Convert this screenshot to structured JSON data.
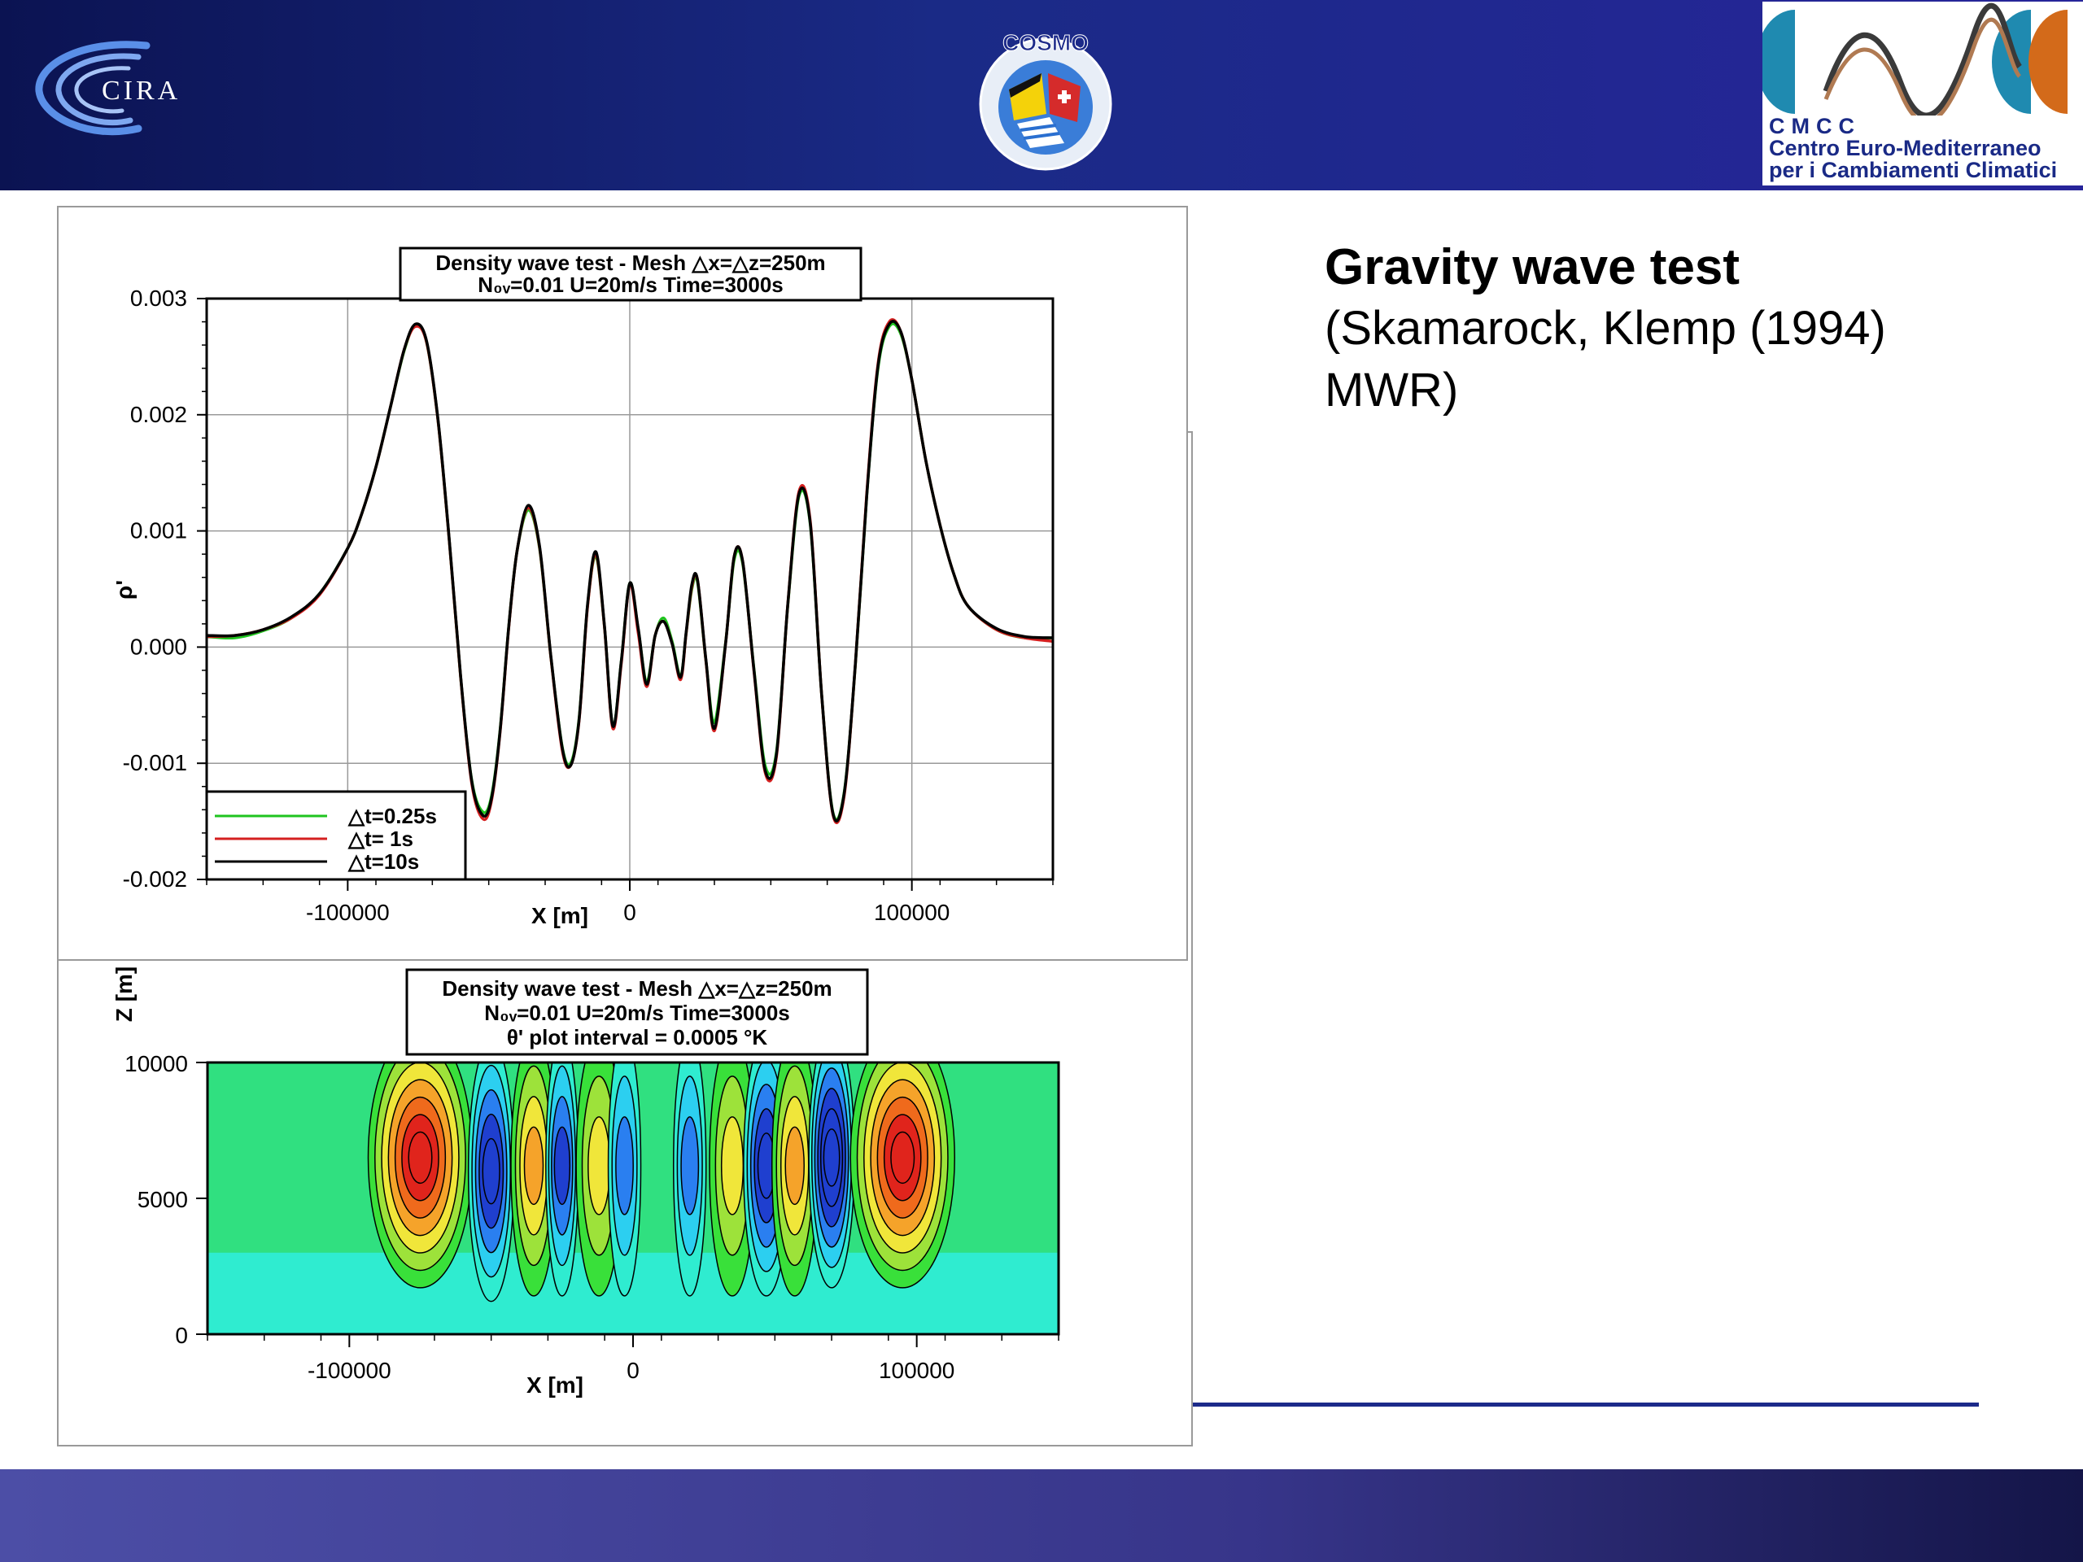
{
  "header": {
    "cira_label": "CIRA",
    "cosmo_label": "COSMO",
    "cmcc_abbr": "CMCC",
    "cmcc_line1": "Centro  Euro-Mediterraneo",
    "cmcc_line2": "per i Cambiamenti Climatici",
    "colors": {
      "header_dark": "#0b1352",
      "header_mid": "#27259a",
      "accent": "#1c2a8a"
    }
  },
  "slide": {
    "title": "Gravity wave test",
    "subtitle_line1": "(Skamarock, Klemp (1994)",
    "subtitle_line2": "MWR)"
  },
  "chart_data": [
    {
      "type": "line",
      "title_line1": "Density wave test - Mesh △x=△z=250m",
      "title_line2": "N₀ᵥ=0.01  U=20m/s  Time=3000s",
      "xlabel": "X [m]",
      "ylabel": "ρ'",
      "xlim": [
        -150000,
        150000
      ],
      "ylim": [
        -0.002,
        0.003
      ],
      "x_ticks": [
        -100000,
        0,
        100000
      ],
      "x_tick_labels": [
        "-100000",
        "0",
        "100000"
      ],
      "y_ticks": [
        0.003,
        0.002,
        0.001,
        0.0,
        -0.001,
        -0.002
      ],
      "y_tick_labels": [
        "0.003",
        "0.002",
        "0.001",
        "0.000",
        "-0.001",
        "-0.002"
      ],
      "grid": true,
      "legend_position": "bottom-left",
      "x": [
        -150000,
        -140000,
        -130000,
        -120000,
        -110000,
        -100000,
        -95000,
        -90000,
        -85000,
        -80000,
        -76000,
        -72000,
        -68000,
        -64000,
        -60000,
        -56000,
        -52000,
        -49000,
        -46000,
        -43000,
        -40000,
        -36000,
        -32000,
        -28000,
        -24000,
        -21000,
        -18000,
        -15000,
        -12000,
        -9000,
        -6000,
        -3000,
        0,
        3000,
        6000,
        9000,
        12000,
        15000,
        18000,
        20000,
        22000,
        24000,
        27000,
        30000,
        34000,
        37000,
        40000,
        44000,
        48000,
        52000,
        56000,
        60000,
        64000,
        68000,
        72000,
        76000,
        80000,
        84000,
        88000,
        92000,
        96000,
        100000,
        105000,
        110000,
        115000,
        120000,
        130000,
        140000,
        150000
      ],
      "series": [
        {
          "name": "△t=0.25s",
          "color": "#1fc41f",
          "values": [
            9e-05,
            8e-05,
            0.00014,
            0.00025,
            0.00046,
            0.00085,
            0.00115,
            0.00155,
            0.00205,
            0.00255,
            0.00277,
            0.00262,
            0.00195,
            0.00092,
            -0.00025,
            -0.00115,
            -0.00142,
            -0.00128,
            -0.00072,
            0.00015,
            0.00082,
            0.00118,
            0.00085,
            -8e-05,
            -0.00085,
            -0.001,
            -0.00062,
            0.00035,
            0.00078,
            0.00018,
            -0.00068,
            -0.00012,
            0.00055,
            0.00015,
            -0.0003,
            0.0001,
            0.00025,
            5e-05,
            -0.00025,
            0.00012,
            0.0005,
            0.00056,
            -0.00012,
            -0.00065,
            5e-05,
            0.00075,
            0.00072,
            -0.00018,
            -0.00102,
            -0.0009,
            0.00035,
            0.0013,
            0.00105,
            -0.0004,
            -0.00142,
            -0.00125,
            -0.00015,
            0.0013,
            0.0024,
            0.00276,
            0.0027,
            0.0023,
            0.0016,
            0.00105,
            0.00062,
            0.00035,
            0.00015,
            8e-05,
            8e-05
          ]
        },
        {
          "name": "△t= 1s",
          "color": "#d41f1f",
          "values": [
            9e-05,
            0.0001,
            0.00015,
            0.00025,
            0.00045,
            0.00085,
            0.00115,
            0.00155,
            0.00205,
            0.00256,
            0.00276,
            0.00262,
            0.00195,
            0.00092,
            -0.00025,
            -0.00118,
            -0.00148,
            -0.00132,
            -0.00074,
            0.00014,
            0.00082,
            0.0012,
            0.00086,
            -8e-05,
            -0.00088,
            -0.00102,
            -0.00064,
            0.00034,
            0.0008,
            0.00018,
            -0.0007,
            -0.00014,
            0.00054,
            0.00012,
            -0.00034,
            0.0001,
            0.00022,
            3e-05,
            -0.00028,
            0.00012,
            0.00052,
            0.00058,
            -0.00012,
            -0.00072,
            4e-05,
            0.00078,
            0.00074,
            -0.0002,
            -0.00108,
            -0.00094,
            0.00036,
            0.00134,
            0.00108,
            -0.0004,
            -0.00144,
            -0.00128,
            -0.00014,
            0.00132,
            0.00244,
            0.0028,
            0.00272,
            0.0023,
            0.0016,
            0.00105,
            0.00062,
            0.00035,
            0.00015,
            8e-05,
            5e-05
          ]
        },
        {
          "name": "△t=10s",
          "color": "#000000",
          "values": [
            0.0001,
            0.0001,
            0.00015,
            0.00026,
            0.00046,
            0.00085,
            0.00115,
            0.00155,
            0.00205,
            0.00256,
            0.00278,
            0.00263,
            0.00196,
            0.00093,
            -0.00024,
            -0.00116,
            -0.00145,
            -0.0013,
            -0.00073,
            0.00015,
            0.00082,
            0.00122,
            0.00087,
            -7e-05,
            -0.00086,
            -0.00102,
            -0.00063,
            0.00036,
            0.00082,
            0.00019,
            -0.00068,
            -0.00012,
            0.00055,
            0.00016,
            -0.00032,
            0.0001,
            0.00022,
            3e-05,
            -0.00026,
            0.00013,
            0.00054,
            0.00058,
            -0.00011,
            -0.0007,
            4e-05,
            0.00078,
            0.00074,
            -0.00019,
            -0.00106,
            -0.00092,
            0.00036,
            0.00132,
            0.00106,
            -0.0004,
            -0.00143,
            -0.00126,
            -0.00014,
            0.0013,
            0.00242,
            0.00278,
            0.00272,
            0.0023,
            0.0016,
            0.00105,
            0.00062,
            0.00035,
            0.00016,
            9e-05,
            8e-05
          ]
        }
      ]
    },
    {
      "type": "heatmap",
      "title_line1": "Density wave test - Mesh △x=△z=250m",
      "title_line2": "N₀ᵥ=0.01  U=20m/s  Time=3000s",
      "title_line3": "θ' plot interval = 0.0005 °K",
      "xlabel": "X [m]",
      "ylabel": "Z [m]",
      "xlim": [
        -150000,
        150000
      ],
      "ylim": [
        0,
        10000
      ],
      "x_tick_labels": [
        "-100000",
        "0",
        "100000"
      ],
      "y_tick_labels": [
        "10000",
        "5000",
        "0"
      ],
      "contour_interval": 0.0005,
      "colors": [
        "#1f3fcf",
        "#2a7ff0",
        "#2ccff0",
        "#2fecd0",
        "#30e080",
        "#39e03a",
        "#9de23a",
        "#f0e63a",
        "#f5a32a",
        "#ef6a1c",
        "#e0241c"
      ],
      "cells": [
        {
          "x": -75000,
          "z": 6500,
          "level": 6
        },
        {
          "x": -50000,
          "z": 6000,
          "level": -4
        },
        {
          "x": -35000,
          "z": 6200,
          "level": 3
        },
        {
          "x": -25000,
          "z": 6200,
          "level": -3
        },
        {
          "x": -12000,
          "z": 6200,
          "level": 2
        },
        {
          "x": -3000,
          "z": 6200,
          "level": -2
        },
        {
          "x": 20000,
          "z": 6200,
          "level": -2
        },
        {
          "x": 35000,
          "z": 6200,
          "level": 2
        },
        {
          "x": 47000,
          "z": 6200,
          "level": -4
        },
        {
          "x": 57000,
          "z": 6200,
          "level": 3
        },
        {
          "x": 70000,
          "z": 6500,
          "level": -5
        },
        {
          "x": 95000,
          "z": 6500,
          "level": 6
        }
      ]
    }
  ]
}
